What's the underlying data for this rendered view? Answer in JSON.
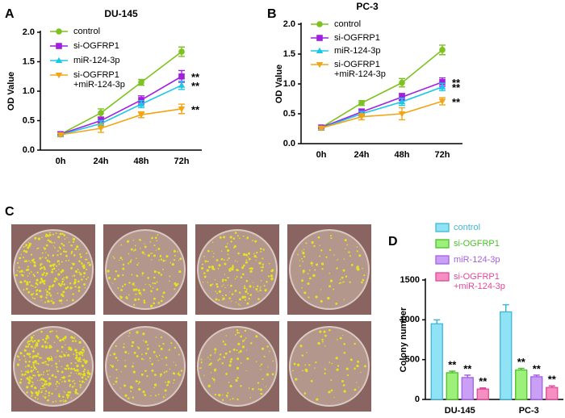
{
  "image_panel": {
    "label": "C"
  },
  "chart_data": [
    {
      "type": "line",
      "panel": "A",
      "title": "DU-145",
      "y_label": "OD Value",
      "categories": [
        "0h",
        "24h",
        "48h",
        "72h"
      ],
      "ylim": [
        0,
        2.0
      ],
      "yticks": [
        {
          "value": 0,
          "label": "0.0"
        },
        0.5,
        {
          "value": 1,
          "label": "1.0"
        },
        1.5,
        {
          "value": 2,
          "label": "2.0"
        }
      ],
      "series": [
        {
          "name": "control",
          "color": "#7dc21e",
          "marker": "circle",
          "values": [
            0.27,
            0.63,
            1.15,
            1.67
          ],
          "errors": [
            0.03,
            0.07,
            0.05,
            0.08
          ]
        },
        {
          "name": "si-OGFRP1",
          "color": "#a21fe0",
          "marker": "square",
          "values": [
            0.27,
            0.5,
            0.85,
            1.25
          ],
          "errors": [
            0.02,
            0.06,
            0.07,
            0.1
          ],
          "annotation": "**"
        },
        {
          "name": "miR-124-3p",
          "color": "#19c7e8",
          "marker": "triangle-up",
          "values": [
            0.26,
            0.45,
            0.78,
            1.1
          ],
          "errors": [
            0.02,
            0.05,
            0.06,
            0.07
          ],
          "annotation": "**"
        },
        {
          "name": "si-OGFRP1\n+miR-124-3p",
          "color": "#f2a516",
          "marker": "triangle-down",
          "values": [
            0.26,
            0.37,
            0.6,
            0.7
          ],
          "errors": [
            0.02,
            0.07,
            0.05,
            0.08
          ],
          "annotation": "**"
        }
      ]
    },
    {
      "type": "line",
      "panel": "B",
      "title": "PC-3",
      "y_label": "OD Value",
      "categories": [
        "0h",
        "24h",
        "48h",
        "72h"
      ],
      "ylim": [
        0,
        2.0
      ],
      "yticks": [
        {
          "value": 0,
          "label": "0.0"
        },
        0.5,
        {
          "value": 1,
          "label": "1.0"
        },
        1.5,
        {
          "value": 2,
          "label": "2.0"
        }
      ],
      "series": [
        {
          "name": "control",
          "color": "#7dc21e",
          "marker": "circle",
          "values": [
            0.27,
            0.68,
            1.02,
            1.57
          ],
          "errors": [
            0.02,
            0.04,
            0.07,
            0.08
          ]
        },
        {
          "name": "si-OGFRP1",
          "color": "#a21fe0",
          "marker": "square",
          "values": [
            0.27,
            0.53,
            0.78,
            1.03
          ],
          "errors": [
            0.02,
            0.05,
            0.06,
            0.07
          ],
          "annotation": "**"
        },
        {
          "name": "miR-124-3p",
          "color": "#19c7e8",
          "marker": "triangle-up",
          "values": [
            0.26,
            0.5,
            0.7,
            0.95
          ],
          "errors": [
            0.02,
            0.04,
            0.06,
            0.06
          ],
          "annotation": "**"
        },
        {
          "name": "si-OGFRP1\n+miR-124-3p",
          "color": "#f2a516",
          "marker": "triangle-down",
          "values": [
            0.26,
            0.45,
            0.5,
            0.71
          ],
          "errors": [
            0.02,
            0.05,
            0.1,
            0.06
          ],
          "annotation": "**"
        }
      ]
    },
    {
      "type": "bar",
      "panel": "D",
      "y_label": "Colony number",
      "categories": [
        "DU-145",
        "PC-3"
      ],
      "ylim": [
        0,
        1500
      ],
      "yticks": [
        0,
        500,
        1000,
        1500
      ],
      "series": [
        {
          "name": "control",
          "color": "#8fe3f5",
          "edge_color": "#3fb6d8",
          "values": [
            950,
            1100
          ],
          "errors": [
            50,
            90
          ]
        },
        {
          "name": "si-OGFRP1",
          "color": "#9df07a",
          "edge_color": "#4cc02a",
          "values": [
            335,
            370
          ],
          "errors": [
            20,
            20
          ],
          "annotations": [
            "**",
            "**"
          ]
        },
        {
          "name": "miR-124-3p",
          "color": "#c9a0f5",
          "edge_color": "#a45fe6",
          "values": [
            275,
            285
          ],
          "errors": [
            30,
            20
          ],
          "annotations": [
            "**",
            "**"
          ]
        },
        {
          "name": "si-OGFRP1\n+miR-124-3p",
          "color": "#f58fc2",
          "edge_color": "#e0499a",
          "values": [
            130,
            150
          ],
          "errors": [
            15,
            20
          ],
          "annotations": [
            "**",
            "**"
          ]
        }
      ]
    }
  ]
}
